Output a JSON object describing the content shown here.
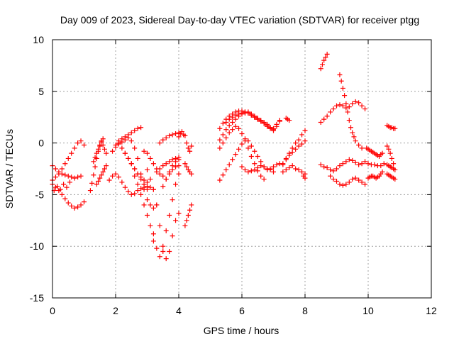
{
  "chart_data": {
    "type": "scatter",
    "title": "Day 009 of 2023, Sidereal Day-to-day VTEC variation (SDTVAR) for receiver ptgg",
    "xlabel": "GPS time / hours",
    "ylabel": "SDTVAR / TECUs",
    "xlim": [
      0,
      12
    ],
    "ylim": [
      -15,
      10
    ],
    "xticks": [
      0,
      2,
      4,
      6,
      8,
      10,
      12
    ],
    "yticks": [
      -15,
      -10,
      -5,
      0,
      5,
      10
    ],
    "grid": true,
    "marker": "plus",
    "color": "#ff0000",
    "series": [
      {
        "x": [
          0.0,
          0.1,
          0.2,
          0.3,
          0.4,
          0.5,
          0.6,
          0.7,
          0.8,
          0.9,
          1.0
        ],
        "y": [
          -4.0,
          -4.3,
          -4.6,
          -5.0,
          -5.4,
          -5.8,
          -6.1,
          -6.3,
          -6.2,
          -6.0,
          -5.7
        ]
      },
      {
        "x": [
          0.0,
          0.1,
          0.2,
          0.3,
          0.4,
          0.5,
          0.6,
          0.7,
          0.8,
          0.9
        ],
        "y": [
          -2.2,
          -2.5,
          -2.8,
          -3.0,
          -3.1,
          -3.2,
          -3.3,
          -3.4,
          -3.3,
          -3.2
        ]
      },
      {
        "x": [
          0.0,
          0.1,
          0.2,
          0.3,
          0.4,
          0.5,
          0.6,
          0.7,
          0.8,
          0.9,
          1.0
        ],
        "y": [
          -3.6,
          -3.3,
          -3.0,
          -2.5,
          -2.0,
          -1.5,
          -1.0,
          -0.5,
          0.0,
          0.2,
          -0.2
        ]
      },
      {
        "x": [
          0.05,
          0.15,
          0.25,
          0.35,
          0.45,
          0.55
        ],
        "y": [
          -4.6,
          -4.2,
          -4.5,
          -4.0,
          -4.3,
          -3.8
        ]
      },
      {
        "x": [
          1.2,
          1.25,
          1.3,
          1.35,
          1.4,
          1.45,
          1.5,
          1.55,
          1.6,
          1.65,
          1.7
        ],
        "y": [
          -4.6,
          -3.9,
          -3.1,
          -2.3,
          -1.5,
          -0.8,
          -0.3,
          0.2,
          -0.2,
          -0.6,
          -1.0
        ]
      },
      {
        "x": [
          1.3,
          1.35,
          1.4,
          1.45,
          1.5,
          1.55,
          1.6
        ],
        "y": [
          -1.8,
          -1.4,
          -1.0,
          -0.6,
          -0.2,
          0.1,
          0.4
        ]
      },
      {
        "x": [
          1.4,
          1.45,
          1.5,
          1.55,
          1.6,
          1.65,
          1.7
        ],
        "y": [
          -4.0,
          -3.7,
          -3.4,
          -3.1,
          -2.8,
          -2.5,
          -2.2
        ]
      },
      {
        "x": [
          1.8,
          1.9,
          2.0,
          2.1,
          2.2,
          2.3,
          2.4,
          2.5,
          2.6,
          2.7,
          2.8,
          2.9,
          3.0,
          3.1,
          3.2
        ],
        "y": [
          -3.6,
          -3.2,
          -3.0,
          -3.3,
          -3.8,
          -4.3,
          -4.7,
          -5.0,
          -4.9,
          -4.6,
          -4.4,
          -4.3,
          -4.2,
          -4.3,
          -4.5
        ]
      },
      {
        "x": [
          1.9,
          2.0,
          2.1,
          2.2,
          2.3,
          2.4,
          2.5,
          2.6,
          2.7,
          2.8,
          2.9,
          3.0
        ],
        "y": [
          -0.8,
          -0.2,
          0.0,
          -0.5,
          -1.0,
          -1.5,
          -2.0,
          -2.5,
          -3.0,
          -3.5,
          -4.0,
          -4.5
        ]
      },
      {
        "x": [
          2.0,
          2.1,
          2.2,
          2.3,
          2.4,
          2.5,
          2.6,
          2.7,
          2.8,
          2.9,
          3.0,
          3.1,
          3.2,
          3.3
        ],
        "y": [
          -0.4,
          -0.1,
          0.1,
          0.3,
          0.5,
          0.2,
          -0.5,
          -1.5,
          -3.0,
          -4.5,
          -5.5,
          -6.0,
          -6.3,
          -6.0
        ]
      },
      {
        "x": [
          2.1,
          2.2,
          2.3,
          2.4,
          2.5,
          2.6,
          2.7,
          2.8
        ],
        "y": [
          0.2,
          0.4,
          0.6,
          0.8,
          1.0,
          1.2,
          1.4,
          1.5
        ]
      },
      {
        "x": [
          2.3,
          2.4,
          2.5,
          2.6,
          2.7,
          2.8,
          2.9,
          3.0
        ],
        "y": [
          -1.0,
          -1.5,
          -2.0,
          -2.5,
          -3.0,
          -3.3,
          -3.6,
          -3.8
        ]
      },
      {
        "x": [
          2.6,
          2.7,
          2.8,
          2.9,
          3.0,
          3.1,
          3.2
        ],
        "y": [
          -3.2,
          -4.0,
          -5.0,
          -6.0,
          -7.0,
          -8.0,
          -8.8
        ]
      },
      {
        "x": [
          2.9,
          3.0,
          3.1,
          3.2,
          3.3,
          3.4,
          3.5,
          3.6,
          3.7,
          3.8,
          3.9,
          4.0
        ],
        "y": [
          -0.8,
          -1.0,
          -1.5,
          -2.0,
          -2.5,
          -3.0,
          -3.2,
          -3.5,
          -3.0,
          -2.6,
          -2.3,
          -2.2
        ]
      },
      {
        "x": [
          3.0,
          3.1,
          3.2,
          3.3,
          3.4,
          3.5,
          3.6,
          3.7,
          3.8,
          3.9,
          4.0
        ],
        "y": [
          -2.6,
          -3.5,
          -4.5,
          -6.0,
          -8.0,
          -10.5,
          -11.2,
          -10.5,
          -9.0,
          -7.5,
          -6.8
        ]
      },
      {
        "x": [
          3.2,
          3.3,
          3.4,
          3.5,
          3.6,
          3.7,
          3.8,
          3.9,
          4.0
        ],
        "y": [
          -9.5,
          -10.2,
          -11.0,
          -10.0,
          -8.5,
          -7.0,
          -5.5,
          -4.0,
          -3.0
        ]
      },
      {
        "x": [
          3.3,
          3.4,
          3.5,
          3.6,
          3.7,
          3.8,
          3.9,
          4.0
        ],
        "y": [
          -2.8,
          -2.5,
          -2.2,
          -2.0,
          -1.8,
          -1.6,
          -1.5,
          -1.4
        ]
      },
      {
        "x": [
          3.4,
          3.5,
          3.6,
          3.7,
          3.8,
          3.9,
          4.0
        ],
        "y": [
          0.0,
          0.3,
          0.5,
          0.7,
          0.8,
          0.9,
          1.0
        ]
      },
      {
        "x": [
          3.5,
          3.6,
          3.7,
          3.8,
          3.9,
          4.0
        ],
        "y": [
          -4.2,
          -3.5,
          -2.8,
          -2.2,
          -1.8,
          -1.6
        ]
      },
      {
        "x": [
          4.0,
          4.05,
          4.1,
          4.15
        ],
        "y": [
          0.6,
          0.9,
          1.1,
          0.8
        ]
      },
      {
        "x": [
          4.2,
          4.25,
          4.3,
          4.35,
          4.4
        ],
        "y": [
          -8.0,
          -7.5,
          -7.0,
          -6.5,
          -6.0
        ]
      },
      {
        "x": [
          4.2,
          4.25,
          4.3,
          4.35,
          4.4
        ],
        "y": [
          -2.0,
          -2.3,
          -2.6,
          -2.8,
          -3.0
        ]
      },
      {
        "x": [
          4.2,
          4.25,
          4.3,
          4.35,
          4.4
        ],
        "y": [
          0.7,
          0.0,
          -0.5,
          -0.8,
          -0.3
        ]
      },
      {
        "x": [
          5.3,
          5.4,
          5.5,
          5.6,
          5.7,
          5.8,
          5.9,
          6.0,
          6.1,
          6.2,
          6.3,
          6.4,
          6.5,
          6.6,
          6.7,
          6.8,
          6.9,
          7.0,
          7.1,
          7.2
        ],
        "y": [
          1.4,
          1.9,
          2.3,
          2.6,
          2.8,
          3.0,
          3.1,
          3.1,
          3.0,
          2.9,
          2.7,
          2.5,
          2.3,
          2.1,
          1.9,
          1.6,
          1.4,
          1.3,
          1.6,
          2.1
        ]
      },
      {
        "x": [
          5.3,
          5.4,
          5.5,
          5.6,
          5.7,
          5.8,
          5.9,
          6.0,
          6.1,
          6.2,
          6.3,
          6.4,
          6.5,
          6.6,
          6.7,
          6.8,
          6.9,
          7.0,
          7.1,
          7.2,
          7.3
        ],
        "y": [
          -3.6,
          -3.1,
          -2.6,
          -2.1,
          -1.6,
          -1.1,
          -0.6,
          -0.1,
          0.4,
          0.2,
          -0.3,
          -0.8,
          -1.3,
          -1.8,
          -2.3,
          -2.6,
          -2.5,
          -2.3,
          -2.1,
          -2.0,
          -2.1
        ]
      },
      {
        "x": [
          5.3,
          5.4,
          5.5,
          5.6,
          5.7,
          5.8,
          5.9,
          6.0,
          6.1,
          6.2,
          6.3,
          6.4,
          6.5,
          6.6,
          6.7,
          6.8,
          6.9,
          7.0
        ],
        "y": [
          0.3,
          0.8,
          1.3,
          1.7,
          2.0,
          2.3,
          2.6,
          2.8,
          2.9,
          3.0,
          2.8,
          2.6,
          2.4,
          2.2,
          2.0,
          1.8,
          1.5,
          1.2
        ]
      },
      {
        "x": [
          5.3,
          5.4,
          5.5,
          5.6,
          5.7,
          5.8,
          5.9,
          6.0,
          6.1,
          6.2,
          6.3,
          6.4,
          6.5,
          6.6,
          6.7
        ],
        "y": [
          -0.5,
          0.0,
          0.5,
          1.0,
          1.3,
          1.6,
          1.4,
          0.9,
          0.2,
          -0.5,
          -1.3,
          -2.0,
          -2.7,
          -3.2,
          -3.5
        ]
      },
      {
        "x": [
          5.5,
          5.6,
          5.7,
          5.8,
          5.9,
          6.0,
          6.1,
          6.2,
          6.3,
          6.4,
          6.5,
          6.6,
          6.7,
          6.8,
          6.9,
          7.0,
          7.1,
          7.2
        ],
        "y": [
          2.0,
          2.3,
          2.5,
          2.7,
          2.8,
          2.9,
          3.0,
          2.9,
          2.7,
          2.5,
          2.3,
          2.1,
          1.9,
          1.7,
          1.5,
          1.4,
          1.8,
          2.2
        ]
      },
      {
        "x": [
          6.0,
          6.1,
          6.2,
          6.3,
          6.4,
          6.5,
          6.6,
          6.7,
          6.8,
          6.9,
          7.0
        ],
        "y": [
          -2.3,
          -2.6,
          -2.8,
          -2.7,
          -2.6,
          -2.4,
          -2.2,
          -2.3,
          -2.5,
          -2.6,
          -2.8
        ]
      },
      {
        "x": [
          7.4,
          7.45,
          7.5
        ],
        "y": [
          2.4,
          2.3,
          2.2
        ]
      },
      {
        "x": [
          7.3,
          7.4,
          7.5,
          7.6,
          7.7,
          7.8,
          7.9,
          8.0
        ],
        "y": [
          -2.8,
          -2.6,
          -2.4,
          -2.2,
          -2.5,
          -2.6,
          -2.8,
          -3.0
        ]
      },
      {
        "x": [
          7.3,
          7.4,
          7.5,
          7.6,
          7.7,
          7.8,
          7.9,
          8.0
        ],
        "y": [
          -2.0,
          -1.5,
          -1.0,
          -0.5,
          0.0,
          0.3,
          0.8,
          1.2
        ]
      },
      {
        "x": [
          7.4,
          7.5,
          7.6,
          7.7,
          7.8,
          7.9,
          8.0
        ],
        "y": [
          -1.6,
          -1.2,
          -0.9,
          -0.6,
          -0.3,
          -0.1,
          0.2
        ]
      },
      {
        "x": [
          7.95,
          8.0
        ],
        "y": [
          -3.2,
          -3.4
        ]
      },
      {
        "x": [
          8.5,
          8.55,
          8.6,
          8.65,
          8.7
        ],
        "y": [
          7.2,
          7.6,
          8.0,
          8.3,
          8.6
        ]
      },
      {
        "x": [
          8.5,
          8.6,
          8.7,
          8.8,
          8.9,
          9.0,
          9.1,
          9.2,
          9.3,
          9.4,
          9.5,
          9.6,
          9.7,
          9.8,
          9.9
        ],
        "y": [
          2.0,
          2.3,
          2.6,
          3.0,
          3.3,
          3.6,
          3.7,
          3.6,
          3.4,
          3.5,
          3.8,
          4.0,
          3.9,
          3.6,
          3.3
        ]
      },
      {
        "x": [
          8.5,
          8.6,
          8.7,
          8.8,
          8.9,
          9.0,
          9.1,
          9.2,
          9.3,
          9.4,
          9.5,
          9.6,
          9.7,
          9.8,
          9.9
        ],
        "y": [
          -2.1,
          -2.3,
          -2.4,
          -2.6,
          -2.7,
          -2.5,
          -2.2,
          -2.0,
          -1.8,
          -1.6,
          -1.7,
          -1.9,
          -2.1,
          -2.0,
          -1.8
        ]
      },
      {
        "x": [
          8.8,
          8.9,
          9.0,
          9.1,
          9.2,
          9.3,
          9.4,
          9.5,
          9.6,
          9.7,
          9.8,
          9.9
        ],
        "y": [
          -3.2,
          -3.5,
          -3.7,
          -4.0,
          -4.1,
          -4.0,
          -3.8,
          -3.5,
          -3.4,
          -3.6,
          -3.8,
          -4.0
        ]
      },
      {
        "x": [
          9.1,
          9.15,
          9.2,
          9.25,
          9.3,
          9.35,
          9.4,
          9.45,
          9.5,
          9.55,
          9.6,
          9.7,
          9.8
        ],
        "y": [
          6.6,
          6.0,
          5.3,
          4.6,
          3.8,
          3.0,
          2.2,
          1.5,
          1.0,
          0.6,
          0.2,
          -0.2,
          -0.5
        ]
      },
      {
        "x": [
          9.95,
          10.0,
          10.05,
          10.1,
          10.15,
          10.2,
          10.25,
          10.3,
          10.35,
          10.4,
          10.45
        ],
        "y": [
          -0.5,
          -0.6,
          -0.7,
          -0.8,
          -0.9,
          -1.0,
          -1.1,
          -1.2,
          -1.3,
          -1.1,
          -1.0
        ]
      },
      {
        "x": [
          10.0,
          10.05,
          10.1,
          10.15,
          10.2,
          10.25,
          10.3,
          10.35,
          10.4,
          10.45
        ],
        "y": [
          -3.4,
          -3.3,
          -3.2,
          -3.2,
          -3.3,
          -3.4,
          -3.3,
          -3.2,
          -3.0,
          -2.8
        ]
      },
      {
        "x": [
          10.0,
          10.1,
          10.2,
          10.3,
          10.4,
          10.5
        ],
        "y": [
          -2.0,
          -2.1,
          -2.1,
          -2.2,
          -2.2,
          -2.0
        ]
      },
      {
        "x": [
          10.6,
          10.65,
          10.7,
          10.75,
          10.8,
          10.85
        ],
        "y": [
          1.7,
          1.6,
          1.5,
          1.5,
          1.4,
          1.4
        ]
      },
      {
        "x": [
          10.6,
          10.65,
          10.7,
          10.75,
          10.8,
          10.85
        ],
        "y": [
          -2.1,
          -2.2,
          -2.3,
          -2.4,
          -2.5,
          -2.6
        ]
      },
      {
        "x": [
          10.6,
          10.65,
          10.7,
          10.75,
          10.8,
          10.85
        ],
        "y": [
          -3.0,
          -3.1,
          -3.2,
          -3.3,
          -3.4,
          -3.5
        ]
      },
      {
        "x": [
          10.6,
          10.65,
          10.7,
          10.75,
          10.8
        ],
        "y": [
          -0.3,
          -0.6,
          -1.0,
          -1.5,
          -2.0
        ]
      }
    ]
  }
}
